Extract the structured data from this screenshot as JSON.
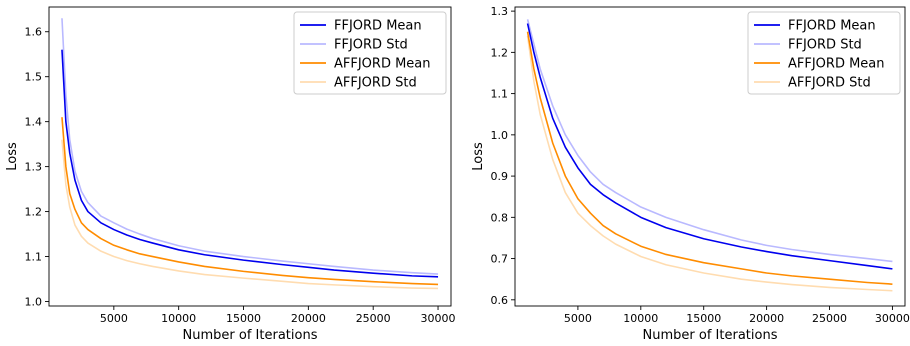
{
  "chart_data": [
    {
      "type": "line",
      "xlabel": "Number of Iterations",
      "ylabel": "Loss",
      "xlim": [
        0,
        31000
      ],
      "ylim": [
        0.99,
        1.655
      ],
      "xticks": [
        5000,
        10000,
        15000,
        20000,
        25000,
        30000
      ],
      "yticks": [
        1.0,
        1.1,
        1.2,
        1.3,
        1.4,
        1.5,
        1.6
      ],
      "legend_position": "top-right",
      "x": [
        1000,
        1300,
        1600,
        2000,
        2500,
        3000,
        4000,
        5000,
        6000,
        7000,
        8000,
        10000,
        12000,
        15000,
        18000,
        20000,
        22000,
        25000,
        28000,
        30000
      ],
      "series": [
        {
          "name": "FFJORD Mean",
          "color": "#0000ee",
          "opacity": 1.0,
          "values": [
            1.56,
            1.4,
            1.33,
            1.27,
            1.225,
            1.2,
            1.175,
            1.16,
            1.148,
            1.138,
            1.13,
            1.115,
            1.104,
            1.092,
            1.082,
            1.076,
            1.07,
            1.063,
            1.057,
            1.055
          ]
        },
        {
          "name": "FFJORD Std",
          "color": "#b9b9ff",
          "opacity": 1.0,
          "values": [
            1.63,
            1.46,
            1.36,
            1.29,
            1.245,
            1.22,
            1.19,
            1.175,
            1.161,
            1.15,
            1.14,
            1.124,
            1.112,
            1.1,
            1.09,
            1.084,
            1.078,
            1.07,
            1.064,
            1.061
          ]
        },
        {
          "name": "AFFJORD Mean",
          "color": "#ff8c00",
          "opacity": 1.0,
          "values": [
            1.41,
            1.3,
            1.24,
            1.205,
            1.175,
            1.16,
            1.14,
            1.125,
            1.115,
            1.106,
            1.1,
            1.088,
            1.078,
            1.067,
            1.058,
            1.053,
            1.049,
            1.044,
            1.04,
            1.038
          ]
        },
        {
          "name": "AFFJORD Std",
          "color": "#ffdcb0",
          "opacity": 1.0,
          "values": [
            1.36,
            1.26,
            1.21,
            1.17,
            1.145,
            1.13,
            1.112,
            1.1,
            1.091,
            1.084,
            1.078,
            1.068,
            1.06,
            1.052,
            1.045,
            1.04,
            1.037,
            1.033,
            1.03,
            1.029
          ]
        }
      ]
    },
    {
      "type": "line",
      "xlabel": "Number of Iterations",
      "ylabel": "Loss",
      "xlim": [
        0,
        31000
      ],
      "ylim": [
        0.585,
        1.31
      ],
      "xticks": [
        5000,
        10000,
        15000,
        20000,
        25000,
        30000
      ],
      "yticks": [
        0.6,
        0.7,
        0.8,
        0.9,
        1.0,
        1.1,
        1.2,
        1.3
      ],
      "legend_position": "top-right",
      "x": [
        1000,
        1500,
        2000,
        3000,
        4000,
        5000,
        6000,
        7000,
        8000,
        10000,
        12000,
        15000,
        18000,
        20000,
        22000,
        25000,
        28000,
        30000
      ],
      "series": [
        {
          "name": "FFJORD Mean",
          "color": "#0000ee",
          "opacity": 1.0,
          "values": [
            1.27,
            1.2,
            1.14,
            1.04,
            0.97,
            0.92,
            0.88,
            0.855,
            0.835,
            0.8,
            0.775,
            0.748,
            0.728,
            0.717,
            0.707,
            0.695,
            0.683,
            0.675
          ]
        },
        {
          "name": "FFJORD Std",
          "color": "#b9b9ff",
          "opacity": 1.0,
          "values": [
            1.28,
            1.22,
            1.16,
            1.07,
            1.0,
            0.95,
            0.91,
            0.88,
            0.86,
            0.825,
            0.8,
            0.77,
            0.745,
            0.732,
            0.722,
            0.71,
            0.7,
            0.693
          ]
        },
        {
          "name": "AFFJORD Mean",
          "color": "#ff8c00",
          "opacity": 1.0,
          "values": [
            1.25,
            1.16,
            1.09,
            0.98,
            0.9,
            0.845,
            0.81,
            0.78,
            0.76,
            0.73,
            0.71,
            0.69,
            0.675,
            0.665,
            0.658,
            0.65,
            0.642,
            0.638
          ]
        },
        {
          "name": "AFFJORD Std",
          "color": "#ffdcb0",
          "opacity": 1.0,
          "values": [
            1.24,
            1.13,
            1.05,
            0.94,
            0.86,
            0.81,
            0.78,
            0.755,
            0.735,
            0.705,
            0.685,
            0.665,
            0.65,
            0.643,
            0.637,
            0.63,
            0.625,
            0.622
          ]
        }
      ]
    }
  ]
}
